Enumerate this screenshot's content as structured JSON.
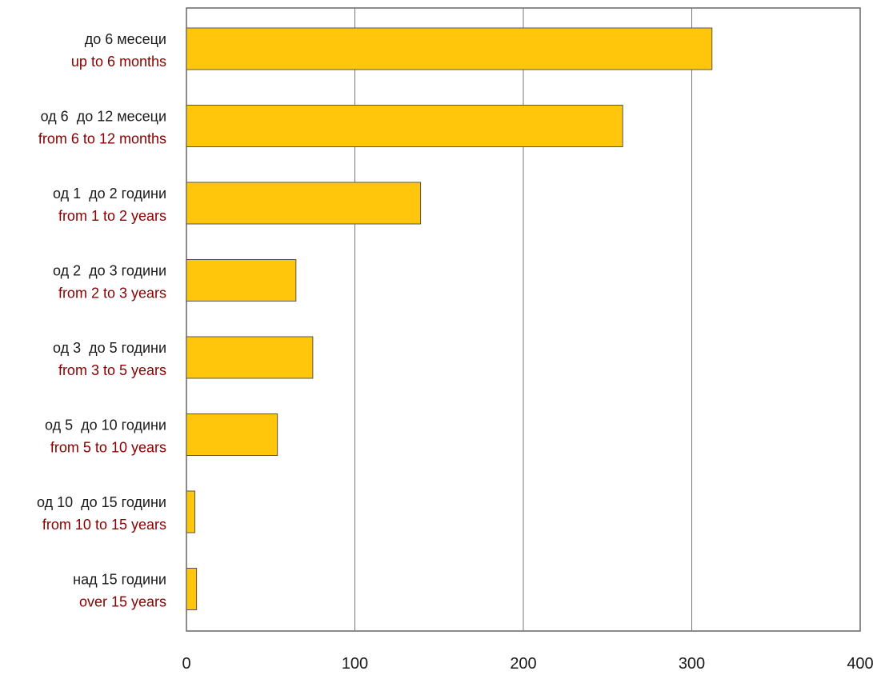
{
  "chart_data": {
    "type": "bar",
    "orientation": "horizontal",
    "categories": [
      {
        "label_mk": "до 6 месеци",
        "label_en": "up to 6 months"
      },
      {
        "label_mk": "од 6  до 12 месеци",
        "label_en": "from 6 to 12 months"
      },
      {
        "label_mk": "од 1  до 2 години",
        "label_en": "from 1 to 2 years"
      },
      {
        "label_mk": "од 2  до 3 години",
        "label_en": "from 2 to 3 years"
      },
      {
        "label_mk": "од 3  до 5 години",
        "label_en": "from 3 to 5 years"
      },
      {
        "label_mk": "од 5  до 10 години",
        "label_en": "from 5 to 10 years"
      },
      {
        "label_mk": "од 10  до 15 години",
        "label_en": "from 10 to 15 years"
      },
      {
        "label_mk": "над 15 години",
        "label_en": "over 15 years"
      }
    ],
    "values": [
      312,
      259,
      139,
      65,
      75,
      54,
      5,
      6
    ],
    "xlim": [
      0,
      400
    ],
    "x_ticks": [
      0,
      100,
      200,
      300,
      400
    ],
    "x_tick_labels": [
      "0",
      "100",
      "200",
      "300",
      "400"
    ],
    "grid": "vertical",
    "legend": "none",
    "colors": {
      "bar_fill": "#FFC60B",
      "bar_stroke": "#555555",
      "label_primary": "#1a1a1a",
      "label_secondary": "#8B0000",
      "grid": "#777777",
      "frame": "#666666"
    }
  }
}
